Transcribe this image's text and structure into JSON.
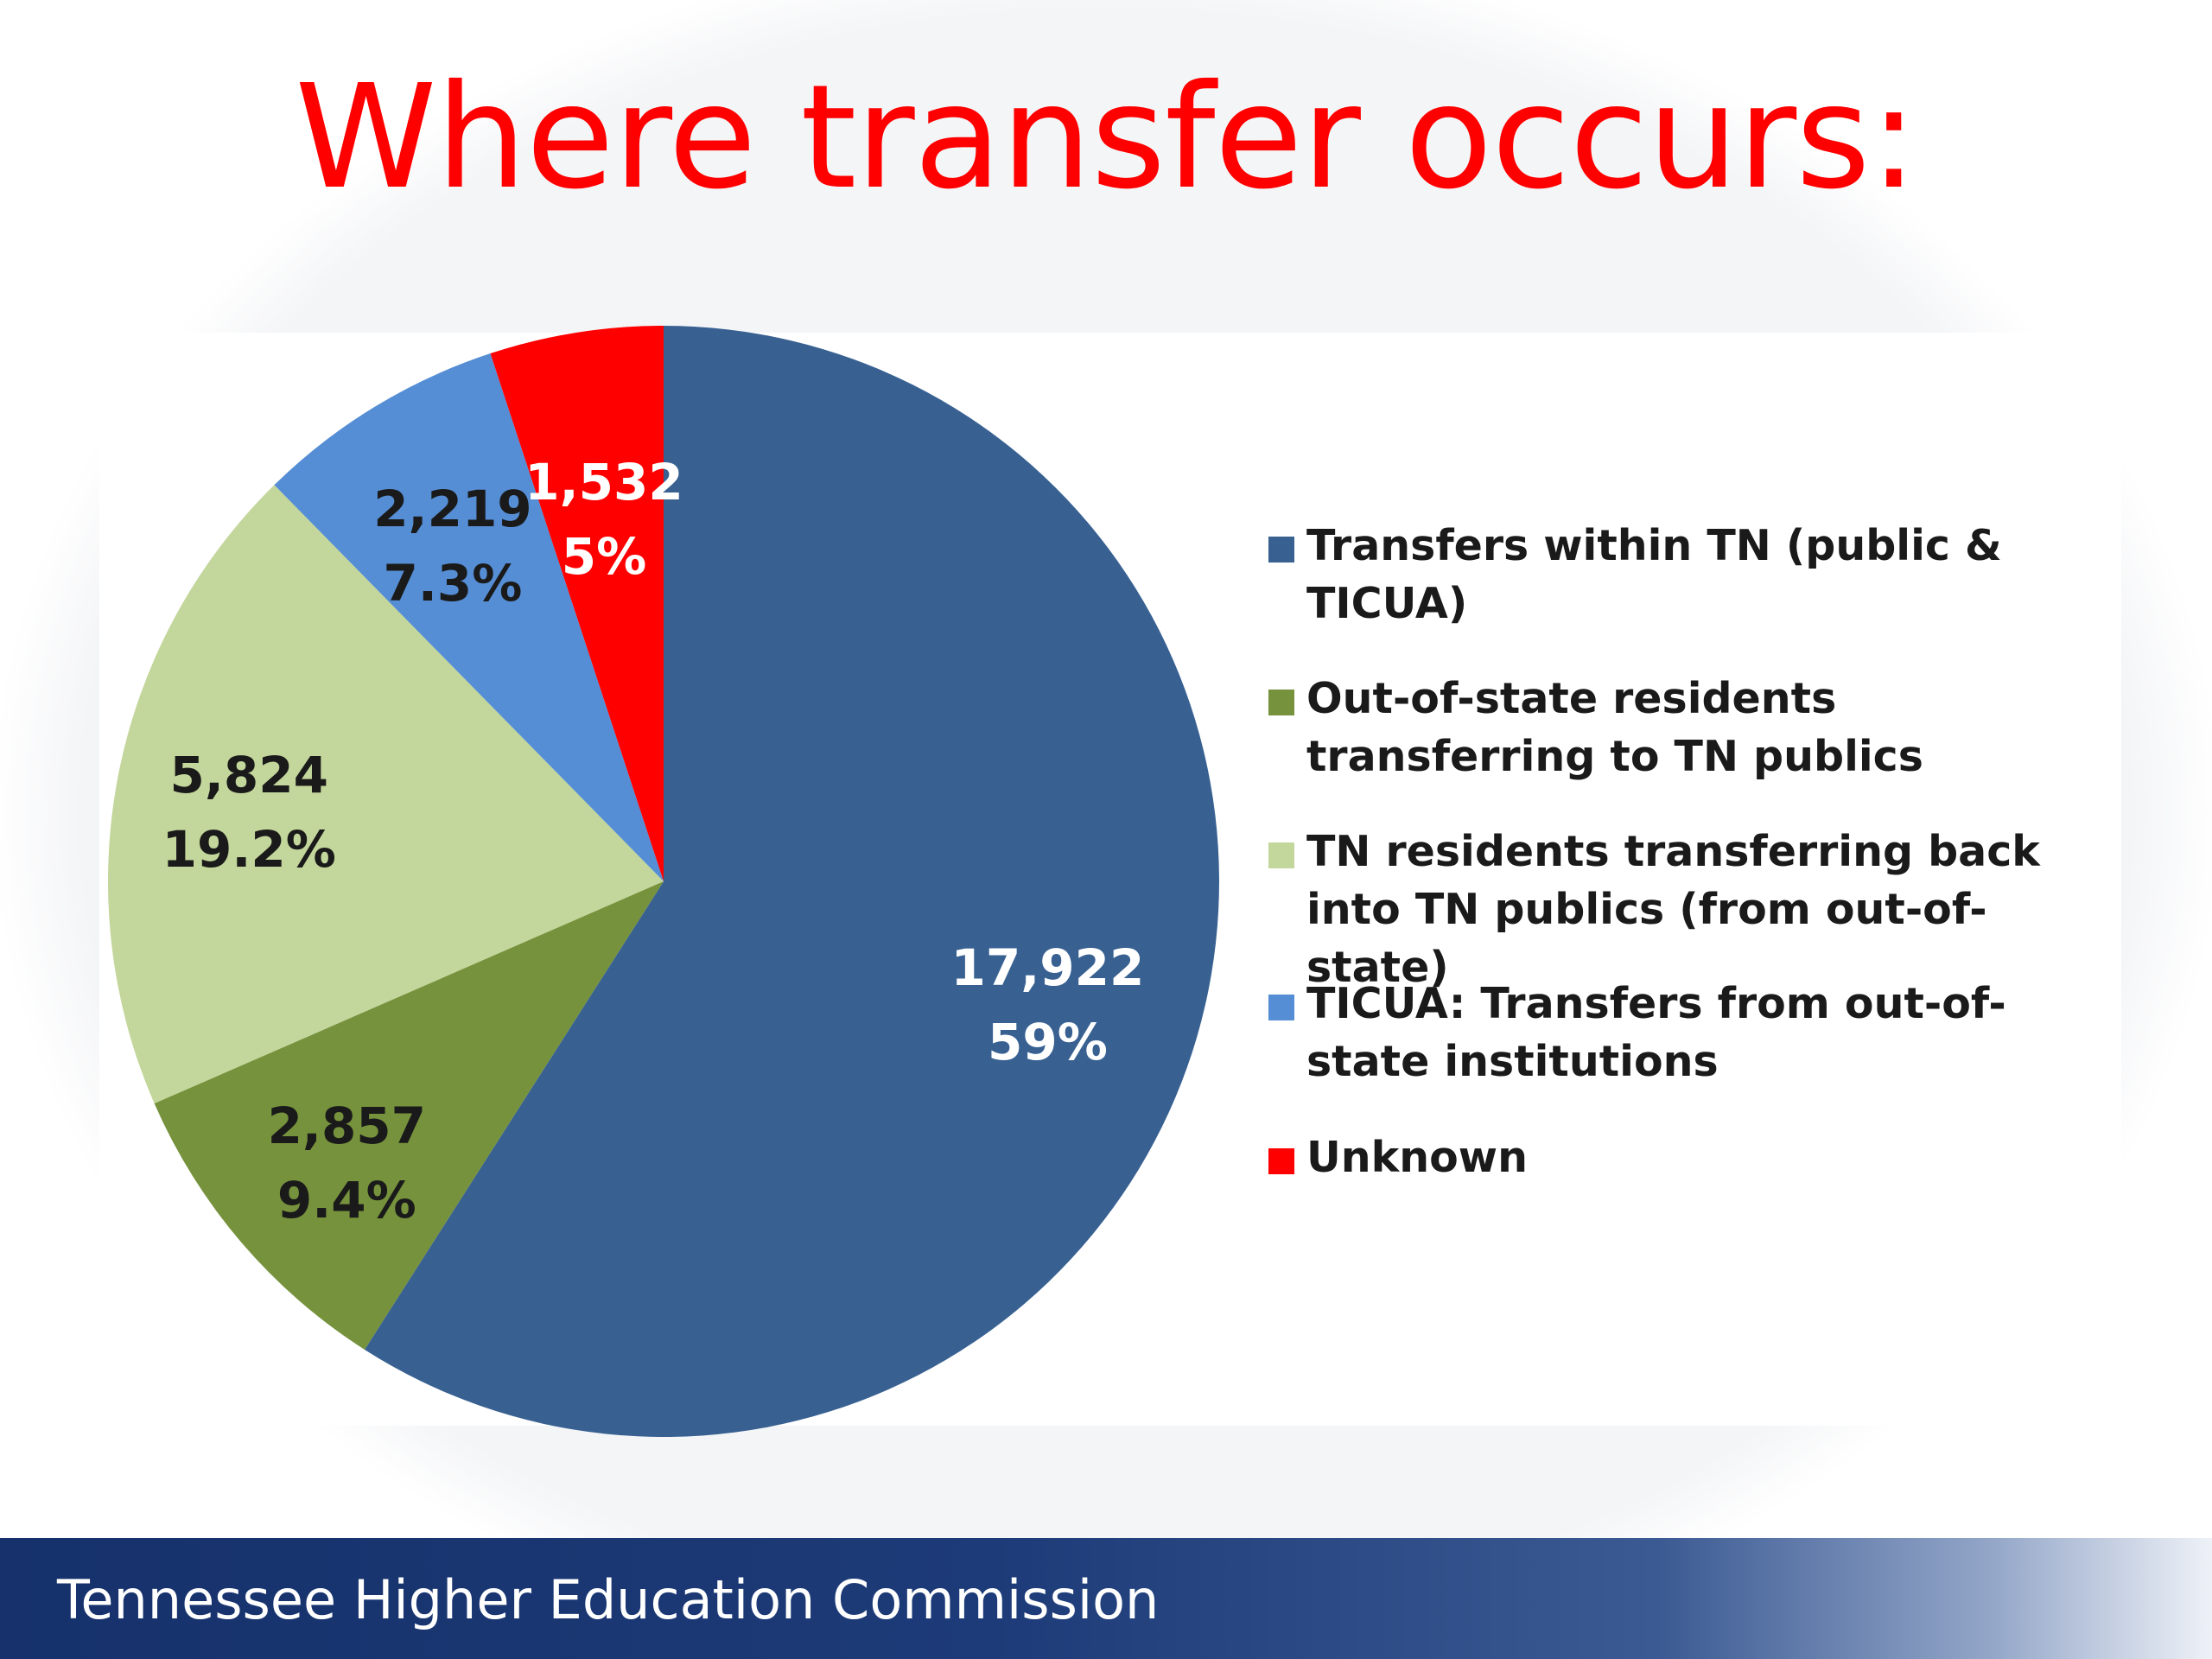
{
  "title": "Where transfer occurs:",
  "footer": {
    "text": "Tennessee Higher Education Commission"
  },
  "chart_data": {
    "type": "pie",
    "title": "Where transfer occurs:",
    "slices": [
      {
        "label": "Transfers within TN (public & TICUA)",
        "value": 17922,
        "value_label": "17,922",
        "percent_label": "59%",
        "color": "#386192"
      },
      {
        "label": "Out-of-state residents transferring to TN publics",
        "value": 2857,
        "value_label": "2,857",
        "percent_label": "9.4%",
        "color": "#76923c"
      },
      {
        "label": "TN residents transferring back into TN publics (from out-of-state)",
        "value": 5824,
        "value_label": "5,824",
        "percent_label": "19.2%",
        "color": "#c3d69b"
      },
      {
        "label": "TICUA: Transfers from out-of-state institutions",
        "value": 2219,
        "value_label": "2,219",
        "percent_label": "7.3%",
        "color": "#558ed5"
      },
      {
        "label": "Unknown",
        "value": 1532,
        "value_label": "1,532",
        "percent_label": "5%",
        "color": "#ff0000"
      }
    ],
    "legend_position": "right",
    "data_label_colors": {
      "dark": "#1a1a1a",
      "light": "#ffffff"
    }
  }
}
